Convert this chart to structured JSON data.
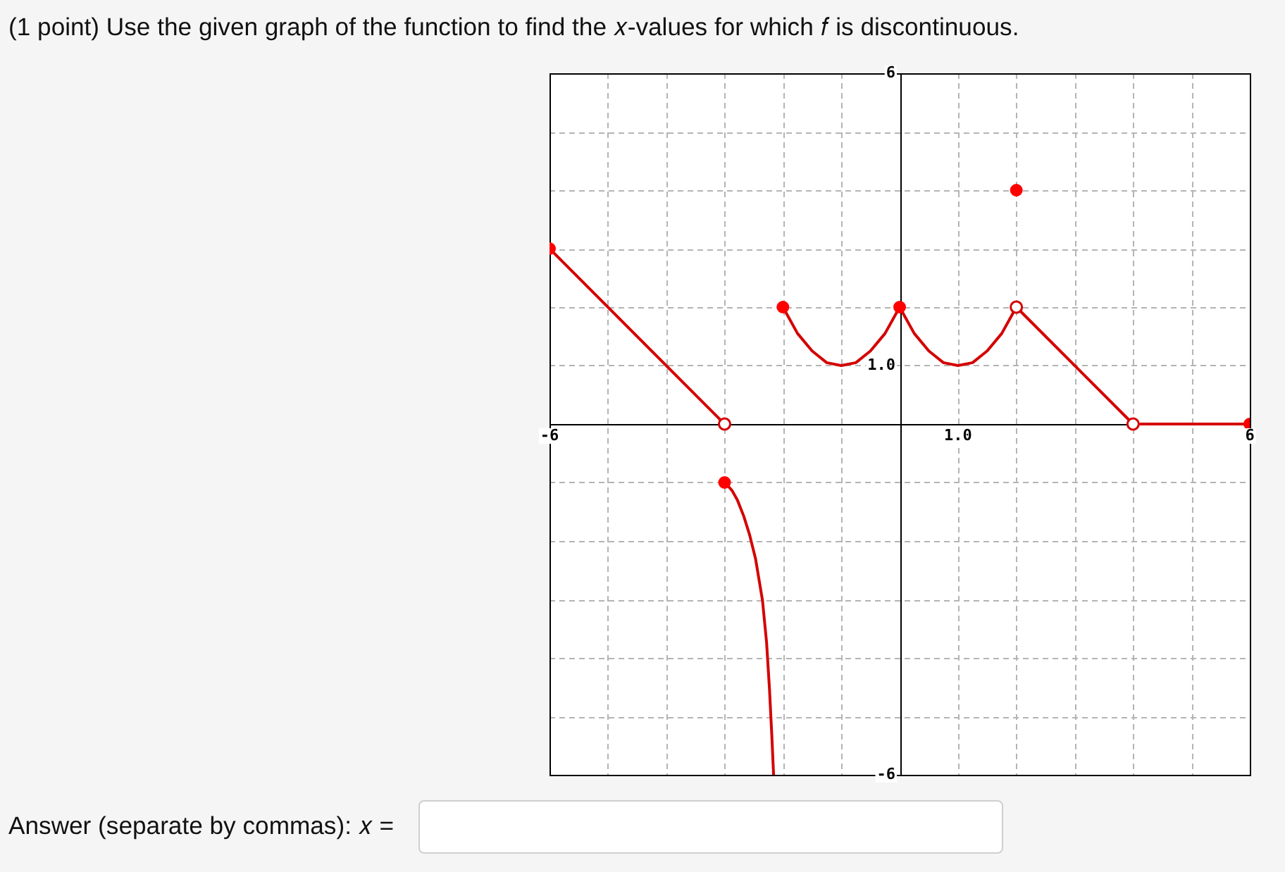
{
  "chart_data": {
    "type": "line",
    "title": "(1 point) Use the given graph of the function to find the 𝑥-values for which 𝑓 is discontinuous.",
    "annotations": [
      "Answer (separate by commas): 𝑥 ="
    ],
    "xlim": [
      -6,
      6
    ],
    "ylim": [
      -6,
      6
    ],
    "xticks": [
      -6,
      {
        "value": -5,
        "label": null
      },
      {
        "value": -4,
        "label": null
      },
      {
        "value": -3,
        "label": null
      },
      {
        "value": -2,
        "label": null
      },
      {
        "value": -1,
        "label": null
      },
      {
        "value": 0,
        "label": null
      },
      {
        "value": 1,
        "label": "1.0"
      },
      {
        "value": 2,
        "label": null
      },
      {
        "value": 3,
        "label": null
      },
      {
        "value": 4,
        "label": null
      },
      {
        "value": 5,
        "label": null
      },
      6
    ],
    "yticks": [
      -6,
      {
        "value": -5,
        "label": null
      },
      {
        "value": -4,
        "label": null
      },
      {
        "value": -3,
        "label": null
      },
      {
        "value": -2,
        "label": null
      },
      {
        "value": -1,
        "label": null
      },
      {
        "value": 0,
        "label": null
      },
      {
        "value": 1,
        "label": "1.0"
      },
      {
        "value": 2,
        "label": null
      },
      {
        "value": 3,
        "label": null
      },
      {
        "value": 4,
        "label": null
      },
      {
        "value": 5,
        "label": null
      },
      6
    ],
    "grid": true,
    "marker": "none",
    "line_style": "solid",
    "series": [
      {
        "color": "#d40000",
        "x": [
          -6,
          -3
        ],
        "values": [
          3,
          0
        ]
      },
      {
        "color": "#d40000",
        "x": [
          -3,
          -2.94,
          -2.87,
          -2.78,
          -2.67,
          -2.57,
          -2.47,
          -2.35,
          -2.28,
          -2.23,
          -2.19,
          -2.16
        ],
        "values": [
          -1,
          -1.06,
          -1.14,
          -1.3,
          -1.58,
          -1.9,
          -2.3,
          -3.02,
          -3.74,
          -4.54,
          -5.34,
          -6
        ]
      },
      {
        "color": "#d40000",
        "x": [
          -2,
          -1.75,
          -1.5,
          -1.25,
          -1,
          -0.75,
          -0.5,
          -0.25,
          0,
          0.25,
          0.5,
          0.75,
          1,
          1.25,
          1.5,
          1.75,
          2
        ],
        "values": [
          2,
          1.55,
          1.25,
          1.05,
          1,
          1.05,
          1.25,
          1.55,
          2,
          1.55,
          1.25,
          1.05,
          1,
          1.05,
          1.25,
          1.55,
          2
        ]
      },
      {
        "color": "#d40000",
        "x": [
          2,
          4,
          6
        ],
        "values": [
          2,
          0,
          0
        ]
      },
      {
        "type": "scatter",
        "color": "#ff0000",
        "marker": "circle",
        "x": [
          -6,
          -3,
          -2,
          0,
          2,
          6
        ],
        "values": [
          3,
          -1,
          2,
          2,
          4,
          0
        ]
      },
      {
        "type": "scatter",
        "color": "#d40000",
        "marker": "circle-open",
        "x": [
          -3,
          2,
          4
        ],
        "values": [
          0,
          2,
          0
        ]
      }
    ]
  }
}
